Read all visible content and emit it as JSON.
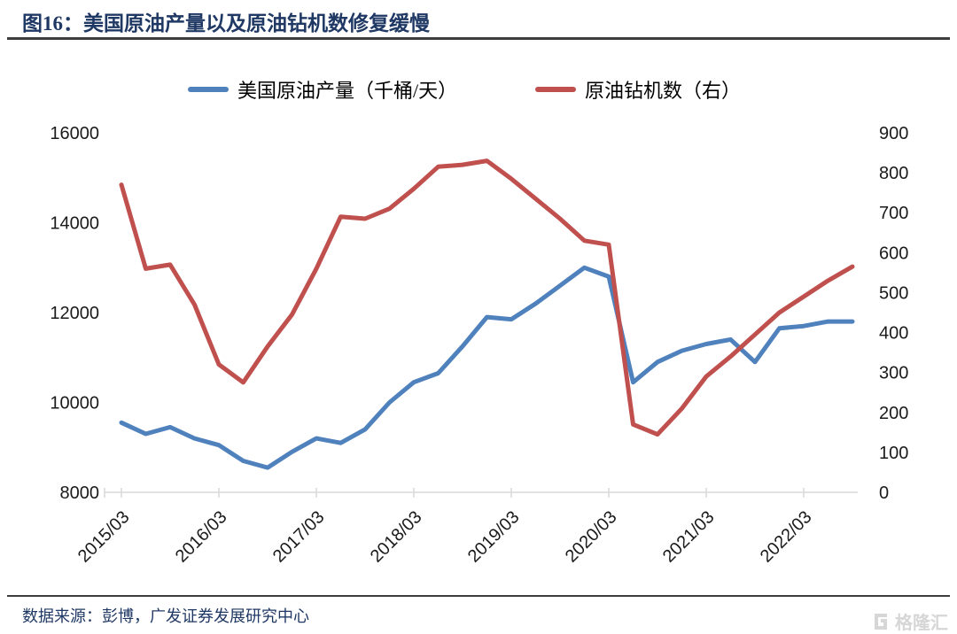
{
  "figure": {
    "title": "图16：美国原油产量以及原油钻机数修复缓慢",
    "source": "数据来源：彭博，广发证券发展研究中心",
    "watermark": "格隆汇"
  },
  "colors": {
    "production_blue": "#4f81bd",
    "rigs_red": "#c0504d",
    "title_navy": "#1f3864",
    "axis_text": "#1a1a1a",
    "axis_line": "#d9d9d9",
    "rule_dark": "#3d3d3d",
    "watermark_gray": "#d6d6d6"
  },
  "legend": [
    {
      "label": "美国原油产量（千桶/天）",
      "color": "#4f81bd"
    },
    {
      "label": "原油钻机数（右）",
      "color": "#c0504d"
    }
  ],
  "chart_data": {
    "type": "line",
    "title": "美国原油产量以及原油钻机数修复缓慢",
    "x": [
      "2015/03",
      "2015/06",
      "2015/09",
      "2015/12",
      "2016/03",
      "2016/06",
      "2016/09",
      "2016/12",
      "2017/03",
      "2017/06",
      "2017/09",
      "2017/12",
      "2018/03",
      "2018/06",
      "2018/09",
      "2018/12",
      "2019/03",
      "2019/06",
      "2019/09",
      "2019/12",
      "2020/03",
      "2020/06",
      "2020/09",
      "2020/12",
      "2021/03",
      "2021/06",
      "2021/09",
      "2021/12",
      "2022/03",
      "2022/06",
      "2022/09"
    ],
    "x_tick_labels": [
      "2015/03",
      "2016/03",
      "2017/03",
      "2018/03",
      "2019/03",
      "2020/03",
      "2021/03",
      "2022/03"
    ],
    "series": [
      {
        "name": "美国原油产量（千桶/天）",
        "yaxis": "left",
        "color": "#4f81bd",
        "values": [
          9550,
          9300,
          9450,
          9200,
          9050,
          8700,
          8550,
          8900,
          9200,
          9100,
          9400,
          10000,
          10450,
          10650,
          11250,
          11900,
          11850,
          12200,
          12600,
          13000,
          12800,
          10450,
          10900,
          11150,
          11300,
          11400,
          10900,
          11650,
          11700,
          11800,
          11800
        ]
      },
      {
        "name": "原油钻机数（右）",
        "yaxis": "right",
        "color": "#c0504d",
        "values": [
          770,
          560,
          570,
          470,
          320,
          275,
          365,
          445,
          560,
          690,
          685,
          710,
          760,
          815,
          820,
          830,
          785,
          735,
          685,
          630,
          620,
          170,
          145,
          210,
          290,
          340,
          395,
          450,
          490,
          530,
          565
        ]
      }
    ],
    "left_axis": {
      "min": 8000,
      "max": 16000,
      "label_values": [
        16000,
        14000,
        12000,
        10000,
        8000
      ]
    },
    "right_axis": {
      "min": 0,
      "max": 900,
      "label_values": [
        900,
        800,
        700,
        600,
        500,
        400,
        300,
        200,
        100,
        0
      ]
    },
    "grid": false,
    "legend_position": "top",
    "x_label_rotation": -45
  }
}
